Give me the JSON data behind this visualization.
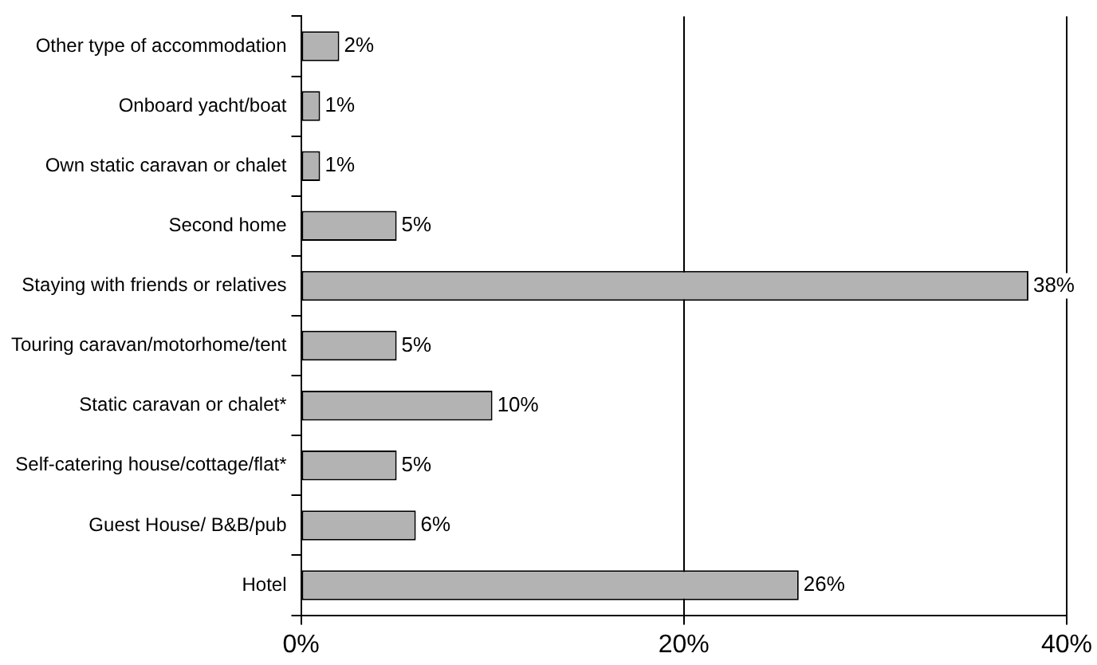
{
  "chart_data": {
    "type": "bar",
    "orientation": "horizontal",
    "categories": [
      "Other type of accommodation",
      "Onboard yacht/boat",
      "Own static caravan or chalet",
      "Second home",
      "Staying with friends or relatives",
      "Touring caravan/motorhome/tent",
      "Static caravan or chalet*",
      "Self-catering house/cottage/flat*",
      "Guest House/ B&B/pub",
      "Hotel"
    ],
    "values": [
      2,
      1,
      1,
      5,
      38,
      5,
      10,
      5,
      6,
      26
    ],
    "value_labels": [
      "2%",
      "1%",
      "1%",
      "5%",
      "38%",
      "5%",
      "10%",
      "5%",
      "6%",
      "26%"
    ],
    "color": "#b3b3b3",
    "xlim": [
      0,
      40
    ],
    "xticks": [
      {
        "value": 0,
        "label": "0%"
      },
      {
        "value": 20,
        "label": "20%"
      },
      {
        "value": 40,
        "label": "40%"
      }
    ],
    "grid": "x",
    "legend": false
  }
}
